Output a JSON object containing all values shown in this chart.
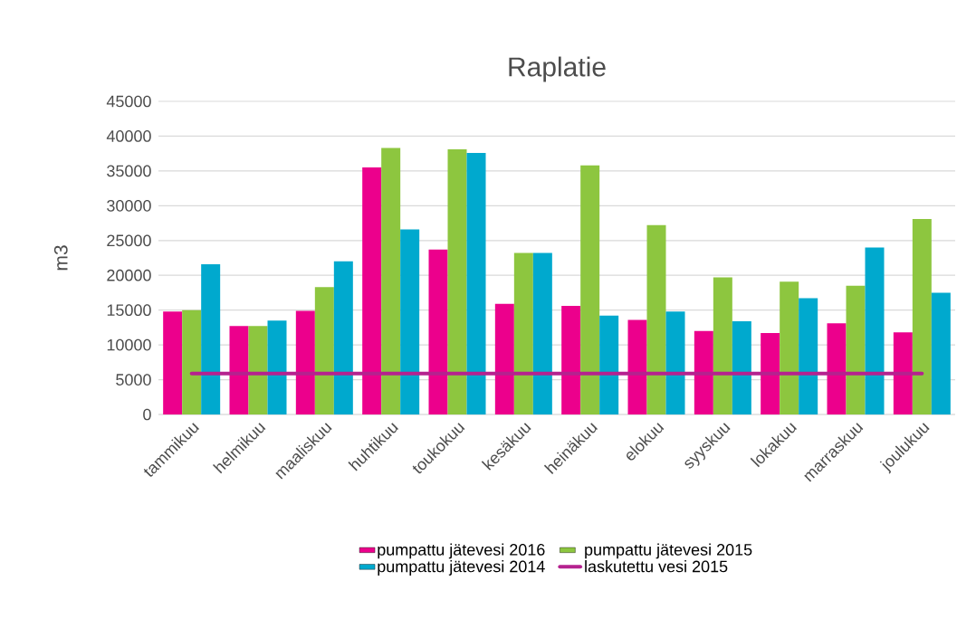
{
  "chart_data": {
    "type": "bar",
    "title": "Raplatie",
    "ylabel": "m3",
    "categories": [
      "tammikuu",
      "helmikuu",
      "maaliskuu",
      "huhtikuu",
      "toukokuu",
      "kesäkuu",
      "heinäkuu",
      "elokuu",
      "syyskuu",
      "lokakuu",
      "marraskuu",
      "joulukuu"
    ],
    "series": [
      {
        "name": "pumpattu jätevesi 2016",
        "color": "#ec008c",
        "values": [
          14800,
          12700,
          14900,
          35500,
          23700,
          15900,
          15600,
          13600,
          12000,
          11700,
          13100,
          11800
        ]
      },
      {
        "name": "pumpattu jätevesi 2015",
        "color": "#8dc63f",
        "values": [
          15000,
          12700,
          18300,
          38300,
          38100,
          23200,
          35800,
          27200,
          19700,
          19100,
          18500,
          28100
        ]
      },
      {
        "name": "pumpattu jätevesi 2014",
        "color": "#00a9ce",
        "values": [
          21600,
          13500,
          22000,
          26600,
          37600,
          23200,
          14200,
          14800,
          13400,
          16700,
          24000,
          17500
        ]
      },
      {
        "name": "laskutettu vesi 2015",
        "type": "line",
        "color": "#b5228f",
        "values": [
          5900,
          5900,
          5900,
          5900,
          5900,
          5900,
          5900,
          5900,
          5900,
          5900,
          5900,
          5900
        ]
      }
    ],
    "ylim": [
      0,
      45000
    ],
    "yticks": [
      0,
      5000,
      10000,
      15000,
      20000,
      25000,
      30000,
      35000,
      40000,
      45000
    ],
    "grid": "y",
    "legend": "bottom"
  }
}
